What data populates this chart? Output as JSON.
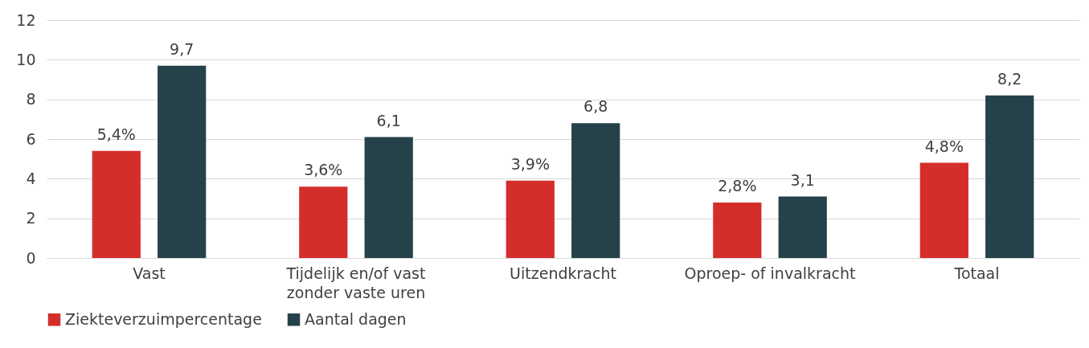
{
  "chart_data": {
    "type": "bar",
    "categories": [
      "Vast",
      "Tijdelijk en/of vast zonder vaste uren",
      "Uitzendkracht",
      "Oproep- of invalkracht",
      "Totaal"
    ],
    "series": [
      {
        "name": "Ziekteverzuimpercentage",
        "color": "#d42e2b",
        "values": [
          5.4,
          3.6,
          3.9,
          2.8,
          4.8
        ],
        "value_labels": [
          "5,4%",
          "3,6%",
          "3,9%",
          "2,8%",
          "4,8%"
        ]
      },
      {
        "name": "Aantal dagen",
        "color": "#25424a",
        "values": [
          9.7,
          6.1,
          6.8,
          3.1,
          8.2
        ],
        "value_labels": [
          "9,7",
          "6,1",
          "6,8",
          "3,1",
          "8,2"
        ]
      }
    ],
    "ylim": [
      0,
      12
    ],
    "yticks": [
      0,
      2,
      4,
      6,
      8,
      10,
      12
    ],
    "grid": "y",
    "legend": "bottom"
  }
}
